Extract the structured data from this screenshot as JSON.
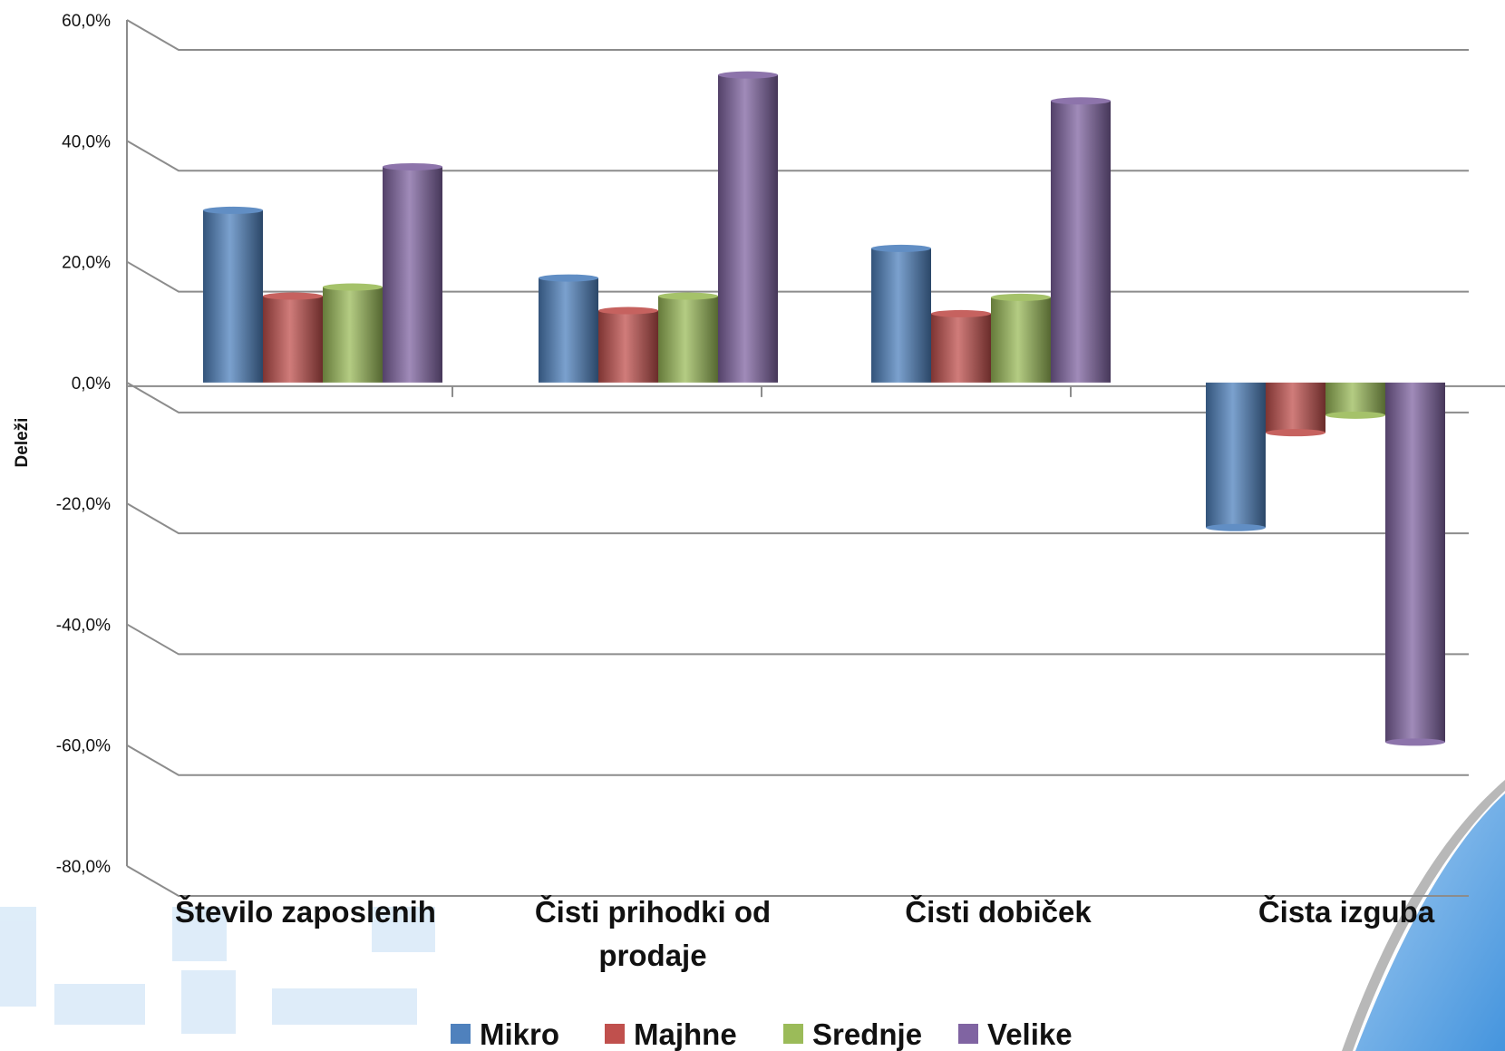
{
  "chart_data": {
    "type": "bar",
    "title": "",
    "xlabel": "",
    "ylabel": "Deleži",
    "ylim": [
      -80,
      60
    ],
    "yticks": [
      "60,0%",
      "40,0%",
      "20,0%",
      "0,0%",
      "-20,0%",
      "-40,0%",
      "-60,0%",
      "-80,0%"
    ],
    "categories": [
      [
        "Število zaposlenih"
      ],
      [
        "Čisti prihodki od",
        "prodaje"
      ],
      [
        "Čisti dobiček"
      ],
      [
        "Čista izguba"
      ]
    ],
    "series": [
      {
        "name": "Mikro",
        "color": "#4f81bd",
        "values": [
          28.5,
          17.3,
          22.2,
          -24.0
        ]
      },
      {
        "name": "Majhne",
        "color": "#c0504d",
        "values": [
          14.3,
          11.9,
          11.4,
          -8.3
        ]
      },
      {
        "name": "Srednje",
        "color": "#9bbb59",
        "values": [
          15.8,
          14.3,
          14.1,
          -5.4
        ]
      },
      {
        "name": "Velike",
        "color": "#8064a2",
        "values": [
          35.7,
          50.9,
          46.6,
          -59.5
        ]
      }
    ],
    "grid": true,
    "legend": "bottom"
  }
}
